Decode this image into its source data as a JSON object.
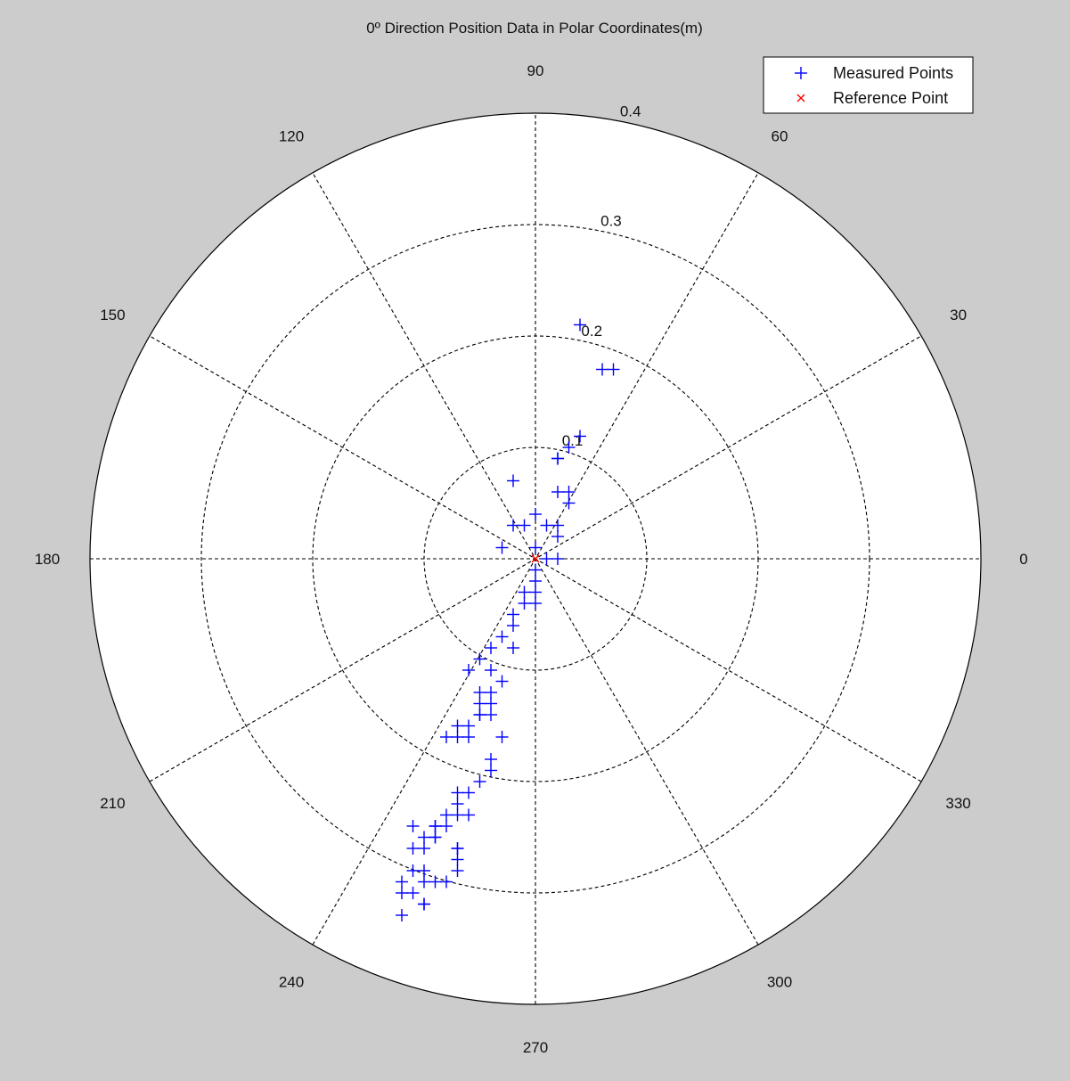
{
  "chart_data": {
    "type": "scatter",
    "coordinate_system": "polar",
    "title": "0º Direction Position Data in Polar Coordinates(m)",
    "angle_unit": "degrees",
    "angle_ticks": [
      0,
      30,
      60,
      90,
      120,
      150,
      180,
      210,
      240,
      270,
      300,
      330
    ],
    "angle_tick_labels": [
      "0",
      "30",
      "60",
      "90",
      "120",
      "150",
      "180",
      "210",
      "240",
      "270",
      "300",
      "330"
    ],
    "r_ticks": [
      0.1,
      0.2,
      0.3,
      0.4
    ],
    "r_tick_labels": [
      "0.1",
      "0.2",
      "0.3",
      "0.4"
    ],
    "r_range": [
      0,
      0.4
    ],
    "grid": true,
    "legend": "top-right",
    "series": [
      {
        "name": "Measured Points",
        "marker": "+",
        "color": "#0000ff",
        "x": [
          0.04,
          0.07,
          0.06,
          0.04,
          0.02,
          0.03,
          0.02,
          -0.02,
          0.0,
          0.01,
          -0.02,
          -0.01,
          -0.03,
          0.0,
          0.02,
          0.02,
          0.02,
          0.03,
          0.03,
          0.01,
          0.02,
          0.0,
          0.0,
          0.0,
          -0.01,
          0.0,
          -0.01,
          -0.02,
          -0.02,
          -0.03,
          -0.04,
          -0.02,
          -0.04,
          -0.05,
          -0.06,
          -0.03,
          -0.04,
          -0.05,
          -0.05,
          -0.05,
          -0.04,
          -0.04,
          -0.05,
          -0.06,
          -0.07,
          -0.06,
          -0.07,
          -0.08,
          -0.03,
          -0.04,
          -0.04,
          -0.05,
          -0.06,
          -0.07,
          -0.07,
          -0.07,
          -0.09,
          -0.08,
          -0.09,
          -0.07,
          -0.07,
          -0.07,
          -0.07,
          -0.08,
          -0.09,
          -0.1,
          -0.11,
          -0.11,
          -0.1,
          -0.09,
          -0.06,
          -0.1,
          -0.11,
          -0.11,
          -0.12,
          -0.1,
          -0.09,
          -0.08,
          -0.12,
          -0.1,
          -0.1,
          -0.12
        ],
        "y": [
          0.21,
          0.17,
          0.17,
          0.11,
          0.09,
          0.1,
          0.09,
          0.07,
          0.04,
          0.03,
          0.03,
          0.03,
          0.01,
          0.01,
          0.03,
          0.02,
          0.06,
          0.06,
          0.05,
          0.0,
          0.0,
          -0.01,
          -0.03,
          -0.04,
          -0.04,
          -0.02,
          -0.03,
          -0.05,
          -0.06,
          -0.07,
          -0.08,
          -0.08,
          -0.1,
          -0.09,
          -0.1,
          -0.11,
          -0.12,
          -0.12,
          -0.13,
          -0.14,
          -0.13,
          -0.14,
          -0.14,
          -0.15,
          -0.15,
          -0.16,
          -0.16,
          -0.16,
          -0.16,
          -0.18,
          -0.19,
          -0.2,
          -0.21,
          -0.21,
          -0.22,
          -0.23,
          -0.24,
          -0.24,
          -0.25,
          -0.26,
          -0.27,
          -0.28,
          -0.26,
          -0.23,
          -0.24,
          -0.25,
          -0.24,
          -0.26,
          -0.26,
          -0.25,
          -0.23,
          -0.28,
          -0.28,
          -0.3,
          -0.3,
          -0.29,
          -0.29,
          -0.29,
          -0.32,
          -0.31,
          -0.31,
          -0.29
        ]
      },
      {
        "name": "Reference Point",
        "marker": "x",
        "color": "#ff0000",
        "x": [
          0.0
        ],
        "y": [
          0.0
        ]
      }
    ]
  }
}
